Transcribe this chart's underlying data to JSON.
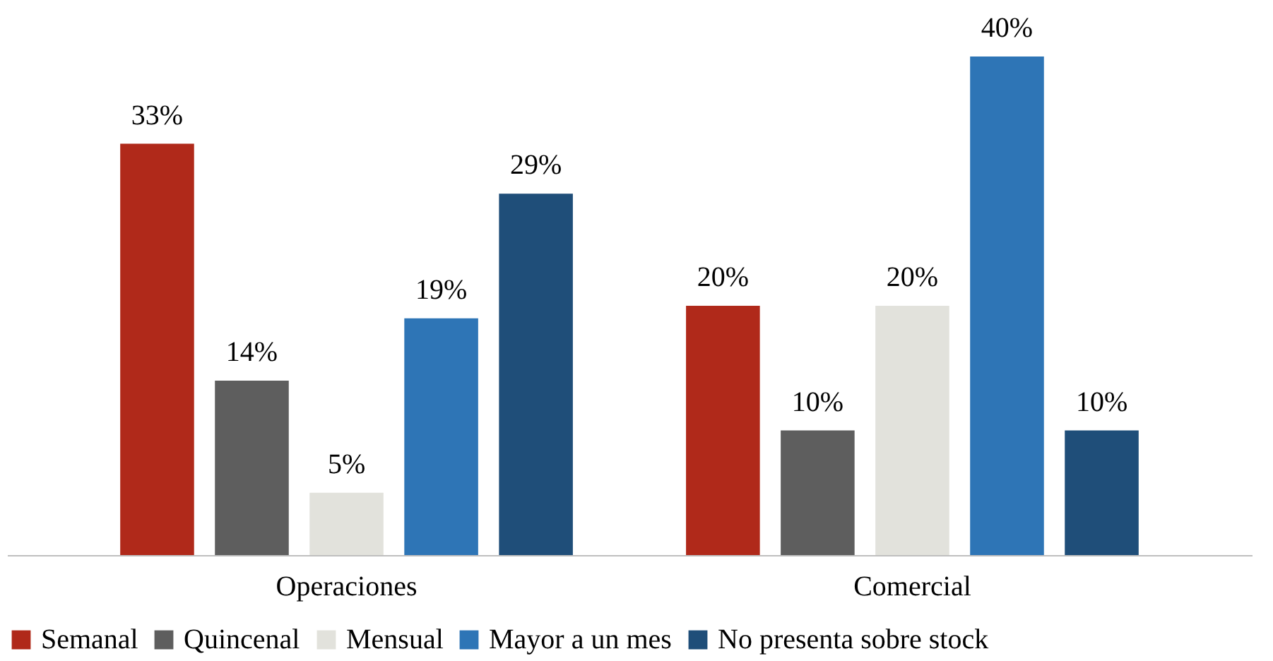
{
  "chart_data": {
    "type": "bar",
    "categories": [
      "Operaciones",
      "Comercial"
    ],
    "series": [
      {
        "name": "Semanal",
        "color": "#b0291a",
        "values": [
          33,
          20
        ],
        "value_labels": [
          "33%",
          "20%"
        ]
      },
      {
        "name": "Quincenal",
        "color": "#5e5e5e",
        "values": [
          14,
          10
        ],
        "value_labels": [
          "14%",
          "10%"
        ]
      },
      {
        "name": "Mensual",
        "color": "#e2e2dc",
        "values": [
          5,
          20
        ],
        "value_labels": [
          "5%",
          "20%"
        ]
      },
      {
        "name": "Mayor a un mes",
        "color": "#2e75b6",
        "values": [
          19,
          40
        ],
        "value_labels": [
          "19%",
          "40%"
        ]
      },
      {
        "name": "No presenta sobre stock",
        "color": "#1f4e79",
        "values": [
          29,
          10
        ],
        "value_labels": [
          "29%",
          "10%"
        ]
      }
    ],
    "legend": "bottom"
  }
}
